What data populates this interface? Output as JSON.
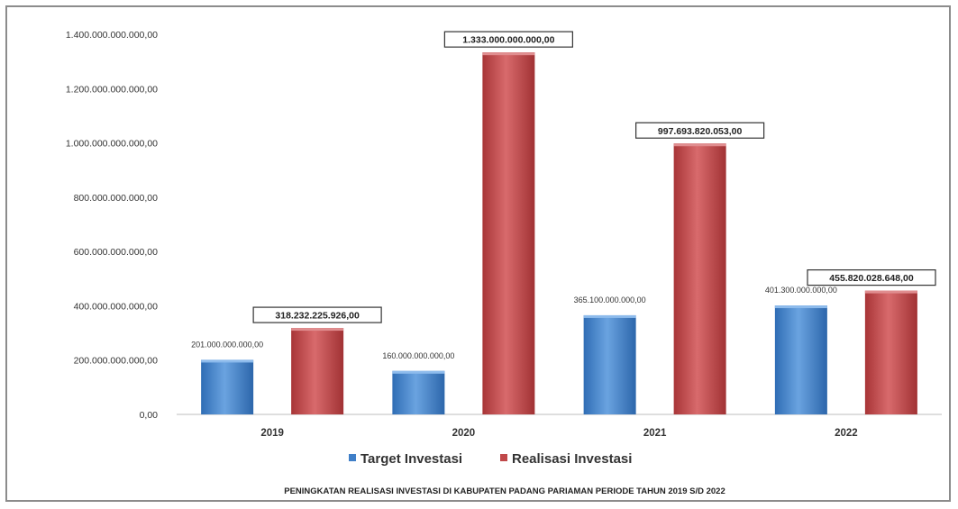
{
  "chart_data": {
    "type": "bar",
    "categories": [
      "2019",
      "2020",
      "2021",
      "2022"
    ],
    "series": [
      {
        "name": "Target Investasi",
        "color": "#3f7fc8",
        "values": [
          201000000000,
          160000000000,
          365100000000,
          401300000000
        ],
        "labels": [
          "201.000.000.000,00",
          "160.000.000.000,00",
          "365.100.000.000,00",
          "401.300.000.000,00"
        ]
      },
      {
        "name": "Realisasi Investasi",
        "color": "#c0484a",
        "values": [
          318232225926,
          1333000000000,
          997693820053,
          455820028648
        ],
        "labels": [
          "318.232.225.926,00",
          "1.333.000.000.000,00",
          "997.693.820.053,00",
          "455.820.028.648,00"
        ]
      }
    ],
    "yticks": [
      0,
      200000000000,
      400000000000,
      600000000000,
      800000000000,
      1000000000000,
      1200000000000,
      1400000000000
    ],
    "ytick_labels": [
      "0,00",
      "200.000.000.000,00",
      "400.000.000.000,00",
      "600.000.000.000,00",
      "800.000.000.000,00",
      "1.000.000.000.000,00",
      "1.200.000.000.000,00",
      "1.400.000.000.000,00"
    ],
    "ylim": [
      0,
      1400000000000
    ],
    "grid": false,
    "legend_position": "bottom",
    "caption": "PENINGKATAN REALISASI INVESTASI  DI KABUPATEN PADANG PARIAMAN PERIODE TAHUN  2019 S/D 2022"
  }
}
